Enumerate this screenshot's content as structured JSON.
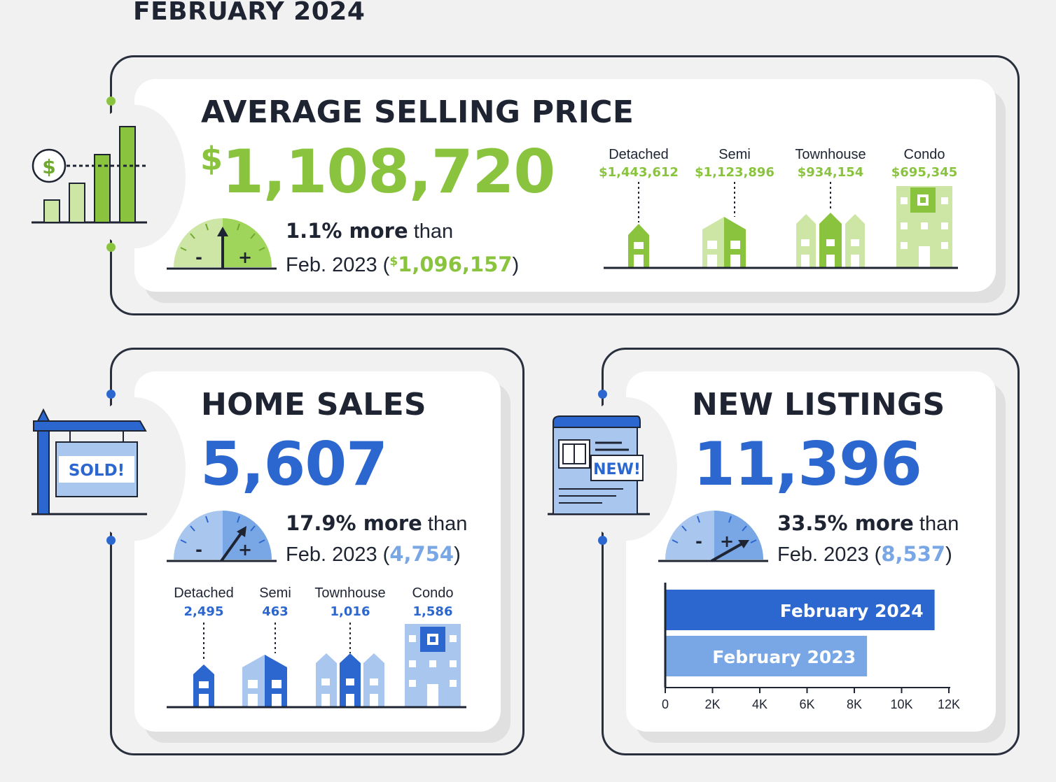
{
  "header": {
    "title": "FEBRUARY 2024"
  },
  "colors": {
    "green": "#8ac43f",
    "green_light": "#cde6a6",
    "green_dark": "#6fa92f",
    "blue": "#2b67cf",
    "blue_light": "#a9c6ee",
    "blue_mid": "#79a6e4",
    "dark": "#1f2433"
  },
  "avg_price": {
    "title": "AVERAGE SELLING PRICE",
    "currency": "$",
    "value": "1,108,720",
    "change_strong": "1.1% more",
    "change_than": " than",
    "compare_prefix": "Feb. 2023 (",
    "compare_currency": "$",
    "compare_value": "1,096,157",
    "compare_suffix": ")",
    "icon": "price-bar-chart-icon",
    "gauge_minus": "-",
    "gauge_plus": "+",
    "types": [
      {
        "label": "Detached",
        "value": "$1,443,612"
      },
      {
        "label": "Semi",
        "value": "$1,123,896"
      },
      {
        "label": "Townhouse",
        "value": "$934,154"
      },
      {
        "label": "Condo",
        "value": "$695,345"
      }
    ]
  },
  "home_sales": {
    "title": "HOME SALES",
    "value": "5,607",
    "change_strong": "17.9% more",
    "change_than": " than",
    "compare_prefix": "Feb. 2023 (",
    "compare_value": "4,754",
    "compare_suffix": ")",
    "icon": "sold-sign-icon",
    "sign_text": "SOLD!",
    "gauge_minus": "-",
    "gauge_plus": "+",
    "types": [
      {
        "label": "Detached",
        "value": "2,495"
      },
      {
        "label": "Semi",
        "value": "463"
      },
      {
        "label": "Townhouse",
        "value": "1,016"
      },
      {
        "label": "Condo",
        "value": "1,586"
      }
    ]
  },
  "new_listings": {
    "title": "NEW LISTINGS",
    "value": "11,396",
    "change_strong": "33.5% more",
    "change_than": " than",
    "compare_prefix": "Feb. 2023 (",
    "compare_value": "8,537",
    "compare_suffix": ")",
    "icon": "new-listing-document-icon",
    "badge_text": "NEW!",
    "gauge_minus": "-",
    "gauge_plus": "+"
  },
  "chart_data": {
    "type": "bar",
    "orientation": "horizontal",
    "categories": [
      "February 2024",
      "February 2023"
    ],
    "values": [
      11396,
      8537
    ],
    "xlim": [
      0,
      12000
    ],
    "xticks": [
      0,
      2000,
      4000,
      6000,
      8000,
      10000,
      12000
    ],
    "xtick_labels": [
      "0",
      "2K",
      "4K",
      "6K",
      "8K",
      "10K",
      "12K"
    ],
    "colors": [
      "#2b67cf",
      "#79a6e4"
    ],
    "grid": false
  }
}
